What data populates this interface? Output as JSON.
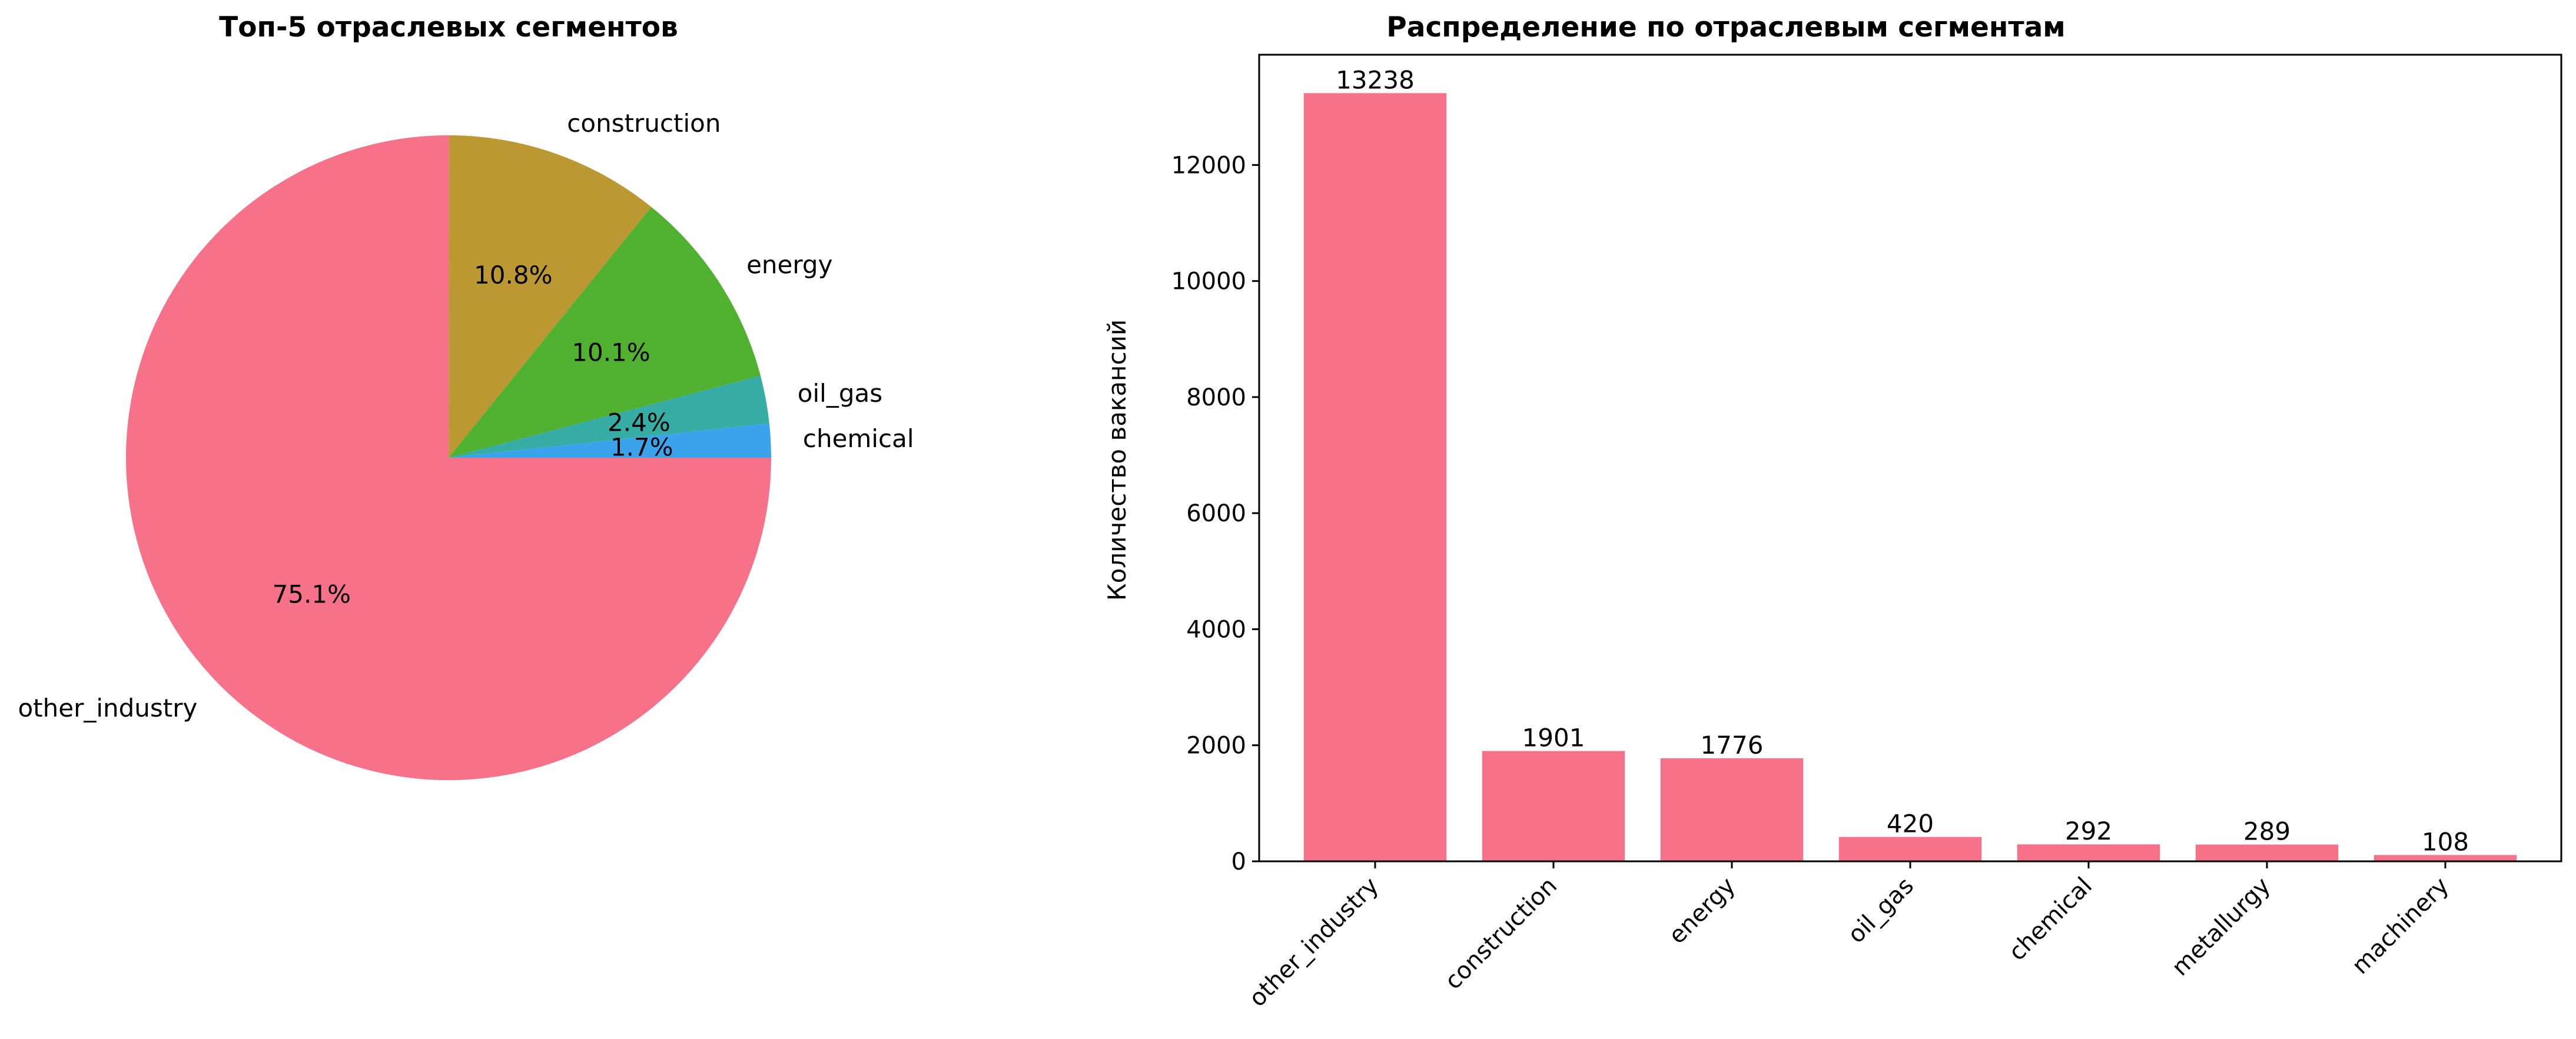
{
  "chart_data": [
    {
      "type": "pie",
      "title": "Топ-5 отраслевых сегментов",
      "slices": [
        {
          "label": "other_industry",
          "percent": 75.1,
          "percent_label": "75.1%",
          "color": "#f77189"
        },
        {
          "label": "construction",
          "percent": 10.8,
          "percent_label": "10.8%",
          "color": "#bb9832"
        },
        {
          "label": "energy",
          "percent": 10.1,
          "percent_label": "10.1%",
          "color": "#50b131"
        },
        {
          "label": "oil_gas",
          "percent": 2.4,
          "percent_label": "2.4%",
          "color": "#36ada4"
        },
        {
          "label": "chemical",
          "percent": 1.7,
          "percent_label": "1.7%",
          "color": "#3ba3ec"
        }
      ],
      "start_angle": 0,
      "direction": "clockwise"
    },
    {
      "type": "bar",
      "title": "Распределение по отраслевым сегментам",
      "xlabel": "",
      "ylabel": "Количество вакансий",
      "categories": [
        "other_industry",
        "construction",
        "energy",
        "oil_gas",
        "chemical",
        "metallurgy",
        "machinery"
      ],
      "values": [
        13238,
        1901,
        1776,
        420,
        292,
        289,
        108
      ],
      "value_labels": [
        "13238",
        "1901",
        "1776",
        "420",
        "292",
        "289",
        "108"
      ],
      "ylim": [
        0,
        13900
      ],
      "yticks": [
        0,
        2000,
        4000,
        6000,
        8000,
        10000,
        12000
      ],
      "ytick_labels": [
        "0",
        "2000",
        "4000",
        "6000",
        "8000",
        "10000",
        "12000"
      ],
      "bar_color": "#f77189",
      "grid": false
    }
  ]
}
